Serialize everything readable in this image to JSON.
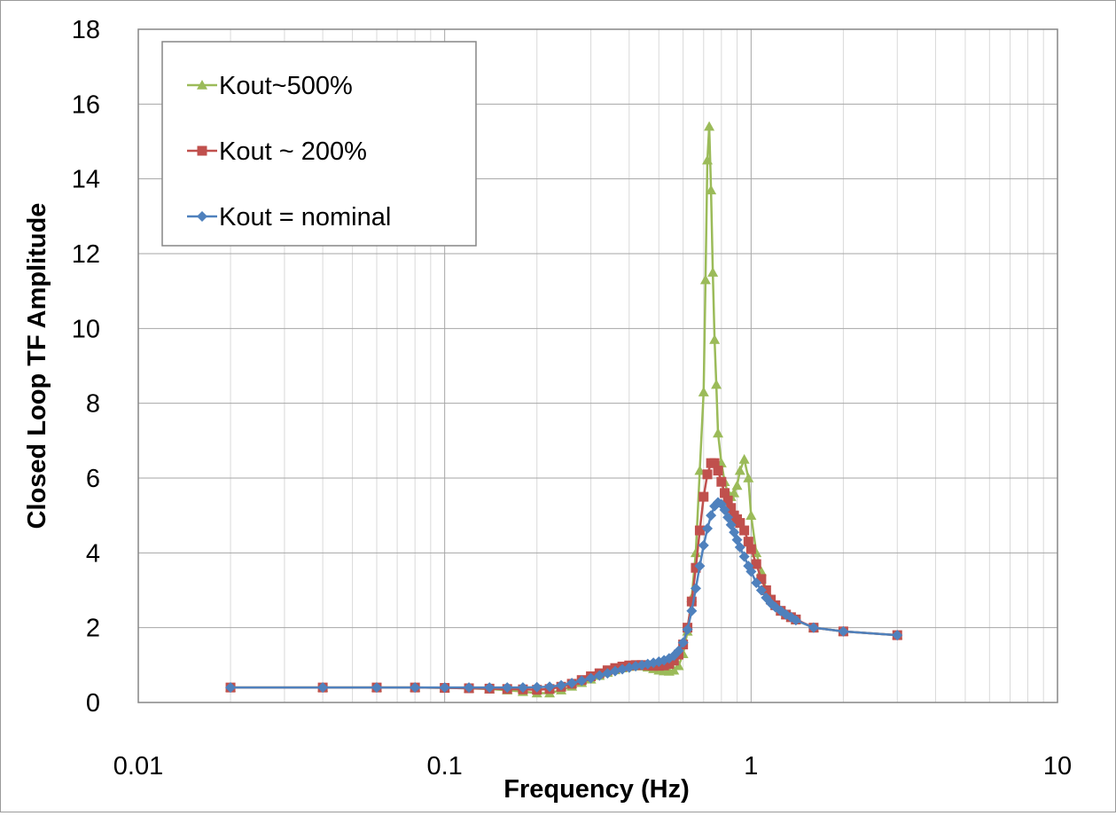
{
  "chart_data": {
    "type": "line",
    "xscale": "log",
    "xlabel": "Frequency (Hz)",
    "ylabel": "Closed Loop TF Amplitude",
    "xlim": [
      0.01,
      10
    ],
    "ylim": [
      0,
      18
    ],
    "x_ticks": [
      "0.01",
      "0.1",
      "1",
      "10"
    ],
    "y_ticks": [
      "0",
      "2",
      "4",
      "6",
      "8",
      "10",
      "12",
      "14",
      "16",
      "18"
    ],
    "grid": true,
    "legend_position": "top-left",
    "series": [
      {
        "name": "Kout~500%",
        "color": "#9bbb59",
        "marker": "triangle",
        "points": [
          [
            0.02,
            0.4
          ],
          [
            0.04,
            0.4
          ],
          [
            0.06,
            0.4
          ],
          [
            0.08,
            0.4
          ],
          [
            0.1,
            0.39
          ],
          [
            0.12,
            0.38
          ],
          [
            0.14,
            0.36
          ],
          [
            0.16,
            0.33
          ],
          [
            0.18,
            0.29
          ],
          [
            0.2,
            0.25
          ],
          [
            0.22,
            0.25
          ],
          [
            0.24,
            0.33
          ],
          [
            0.26,
            0.43
          ],
          [
            0.28,
            0.53
          ],
          [
            0.3,
            0.62
          ],
          [
            0.32,
            0.72
          ],
          [
            0.34,
            0.8
          ],
          [
            0.36,
            0.87
          ],
          [
            0.38,
            0.92
          ],
          [
            0.4,
            0.96
          ],
          [
            0.42,
            0.98
          ],
          [
            0.44,
            0.97
          ],
          [
            0.46,
            0.94
          ],
          [
            0.48,
            0.9
          ],
          [
            0.5,
            0.86
          ],
          [
            0.52,
            0.84
          ],
          [
            0.54,
            0.83
          ],
          [
            0.56,
            0.86
          ],
          [
            0.58,
            0.98
          ],
          [
            0.6,
            1.3
          ],
          [
            0.62,
            1.9
          ],
          [
            0.64,
            2.8
          ],
          [
            0.66,
            4.0
          ],
          [
            0.68,
            6.2
          ],
          [
            0.7,
            8.3
          ],
          [
            0.71,
            11.3
          ],
          [
            0.72,
            14.5
          ],
          [
            0.73,
            15.4
          ],
          [
            0.74,
            13.7
          ],
          [
            0.75,
            11.5
          ],
          [
            0.76,
            9.7
          ],
          [
            0.77,
            8.5
          ],
          [
            0.78,
            7.2
          ],
          [
            0.8,
            6.4
          ],
          [
            0.82,
            5.9
          ],
          [
            0.84,
            5.6
          ],
          [
            0.86,
            5.5
          ],
          [
            0.88,
            5.6
          ],
          [
            0.9,
            5.8
          ],
          [
            0.92,
            6.2
          ],
          [
            0.95,
            6.5
          ],
          [
            0.98,
            6.0
          ],
          [
            1.0,
            5.0
          ],
          [
            1.04,
            4.0
          ],
          [
            1.08,
            3.5
          ],
          [
            1.12,
            3.0
          ],
          [
            1.16,
            2.75
          ],
          [
            1.2,
            2.6
          ],
          [
            1.25,
            2.45
          ],
          [
            1.3,
            2.35
          ],
          [
            1.35,
            2.28
          ],
          [
            1.4,
            2.2
          ],
          [
            1.6,
            2.0
          ],
          [
            2.0,
            1.9
          ],
          [
            3.0,
            1.8
          ]
        ]
      },
      {
        "name": "Kout ~ 200%",
        "color": "#c0504d",
        "marker": "square",
        "points": [
          [
            0.02,
            0.4
          ],
          [
            0.04,
            0.4
          ],
          [
            0.06,
            0.4
          ],
          [
            0.08,
            0.4
          ],
          [
            0.1,
            0.39
          ],
          [
            0.12,
            0.38
          ],
          [
            0.14,
            0.37
          ],
          [
            0.16,
            0.36
          ],
          [
            0.18,
            0.35
          ],
          [
            0.2,
            0.34
          ],
          [
            0.22,
            0.36
          ],
          [
            0.24,
            0.42
          ],
          [
            0.26,
            0.5
          ],
          [
            0.28,
            0.6
          ],
          [
            0.3,
            0.7
          ],
          [
            0.32,
            0.78
          ],
          [
            0.34,
            0.86
          ],
          [
            0.36,
            0.92
          ],
          [
            0.38,
            0.96
          ],
          [
            0.4,
            0.99
          ],
          [
            0.42,
            1.0
          ],
          [
            0.44,
            1.0
          ],
          [
            0.46,
            0.99
          ],
          [
            0.48,
            0.98
          ],
          [
            0.5,
            0.98
          ],
          [
            0.52,
            0.99
          ],
          [
            0.54,
            1.03
          ],
          [
            0.56,
            1.12
          ],
          [
            0.58,
            1.28
          ],
          [
            0.6,
            1.55
          ],
          [
            0.62,
            2.0
          ],
          [
            0.64,
            2.7
          ],
          [
            0.66,
            3.6
          ],
          [
            0.68,
            4.6
          ],
          [
            0.7,
            5.5
          ],
          [
            0.72,
            6.1
          ],
          [
            0.74,
            6.4
          ],
          [
            0.76,
            6.4
          ],
          [
            0.78,
            6.2
          ],
          [
            0.8,
            5.9
          ],
          [
            0.82,
            5.6
          ],
          [
            0.84,
            5.4
          ],
          [
            0.86,
            5.2
          ],
          [
            0.88,
            5.0
          ],
          [
            0.9,
            4.9
          ],
          [
            0.92,
            4.8
          ],
          [
            0.95,
            4.6
          ],
          [
            0.98,
            4.3
          ],
          [
            1.0,
            4.1
          ],
          [
            1.04,
            3.7
          ],
          [
            1.08,
            3.3
          ],
          [
            1.12,
            3.0
          ],
          [
            1.16,
            2.75
          ],
          [
            1.2,
            2.6
          ],
          [
            1.25,
            2.45
          ],
          [
            1.3,
            2.35
          ],
          [
            1.35,
            2.28
          ],
          [
            1.4,
            2.22
          ],
          [
            1.6,
            2.0
          ],
          [
            2.0,
            1.9
          ],
          [
            3.0,
            1.8
          ]
        ]
      },
      {
        "name": "Kout = nominal",
        "color": "#4f81bd",
        "marker": "diamond",
        "points": [
          [
            0.02,
            0.4
          ],
          [
            0.04,
            0.4
          ],
          [
            0.06,
            0.4
          ],
          [
            0.08,
            0.4
          ],
          [
            0.1,
            0.4
          ],
          [
            0.12,
            0.4
          ],
          [
            0.14,
            0.4
          ],
          [
            0.16,
            0.4
          ],
          [
            0.18,
            0.4
          ],
          [
            0.2,
            0.41
          ],
          [
            0.22,
            0.42
          ],
          [
            0.24,
            0.46
          ],
          [
            0.26,
            0.52
          ],
          [
            0.28,
            0.58
          ],
          [
            0.3,
            0.65
          ],
          [
            0.32,
            0.72
          ],
          [
            0.34,
            0.78
          ],
          [
            0.36,
            0.84
          ],
          [
            0.38,
            0.89
          ],
          [
            0.4,
            0.93
          ],
          [
            0.42,
            0.97
          ],
          [
            0.44,
            1.0
          ],
          [
            0.46,
            1.03
          ],
          [
            0.48,
            1.06
          ],
          [
            0.5,
            1.09
          ],
          [
            0.52,
            1.13
          ],
          [
            0.54,
            1.18
          ],
          [
            0.56,
            1.25
          ],
          [
            0.58,
            1.38
          ],
          [
            0.6,
            1.6
          ],
          [
            0.62,
            1.95
          ],
          [
            0.64,
            2.45
          ],
          [
            0.66,
            3.05
          ],
          [
            0.68,
            3.65
          ],
          [
            0.7,
            4.2
          ],
          [
            0.72,
            4.65
          ],
          [
            0.74,
            5.0
          ],
          [
            0.76,
            5.25
          ],
          [
            0.78,
            5.35
          ],
          [
            0.8,
            5.3
          ],
          [
            0.82,
            5.15
          ],
          [
            0.84,
            4.95
          ],
          [
            0.86,
            4.75
          ],
          [
            0.88,
            4.55
          ],
          [
            0.9,
            4.35
          ],
          [
            0.92,
            4.15
          ],
          [
            0.95,
            3.9
          ],
          [
            0.98,
            3.65
          ],
          [
            1.0,
            3.5
          ],
          [
            1.04,
            3.2
          ],
          [
            1.08,
            3.0
          ],
          [
            1.12,
            2.8
          ],
          [
            1.16,
            2.65
          ],
          [
            1.2,
            2.55
          ],
          [
            1.25,
            2.45
          ],
          [
            1.3,
            2.35
          ],
          [
            1.35,
            2.28
          ],
          [
            1.4,
            2.2
          ],
          [
            1.6,
            2.0
          ],
          [
            2.0,
            1.9
          ],
          [
            3.0,
            1.8
          ]
        ]
      }
    ]
  }
}
